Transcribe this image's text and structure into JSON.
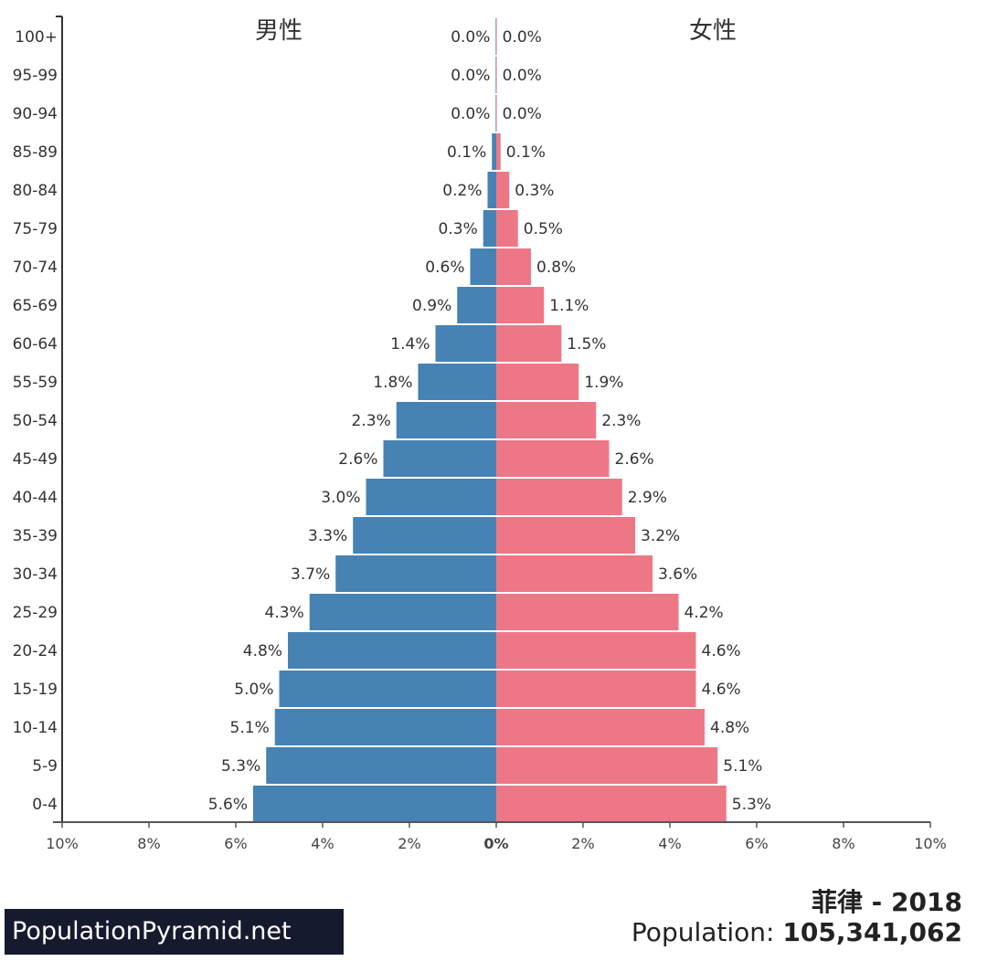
{
  "chart_data": {
    "type": "bar",
    "orientation": "horizontal-population-pyramid",
    "categories": [
      "0-4",
      "5-9",
      "10-14",
      "15-19",
      "20-24",
      "25-29",
      "30-34",
      "35-39",
      "40-44",
      "45-49",
      "50-54",
      "55-59",
      "60-64",
      "65-69",
      "70-74",
      "75-79",
      "80-84",
      "85-89",
      "90-94",
      "95-99",
      "100+"
    ],
    "series": [
      {
        "name": "男性",
        "color": "#4682b4",
        "values": [
          5.6,
          5.3,
          5.1,
          5.0,
          4.8,
          4.3,
          3.7,
          3.3,
          3.0,
          2.6,
          2.3,
          1.8,
          1.4,
          0.9,
          0.6,
          0.3,
          0.2,
          0.1,
          0.0,
          0.0,
          0.0
        ]
      },
      {
        "name": "女性",
        "color": "#ee7785",
        "values": [
          5.3,
          5.1,
          4.8,
          4.6,
          4.6,
          4.2,
          3.6,
          3.2,
          2.9,
          2.6,
          2.3,
          1.9,
          1.5,
          1.1,
          0.8,
          0.5,
          0.3,
          0.1,
          0.0,
          0.0,
          0.0
        ]
      }
    ],
    "xlim": [
      -10,
      10
    ],
    "xticks": [
      "10%",
      "8%",
      "6%",
      "4%",
      "2%",
      "0%",
      "2%",
      "4%",
      "6%",
      "8%",
      "10%"
    ],
    "value_suffix": "%",
    "grid": false
  },
  "footer": {
    "logo": "PopulationPyramid.net",
    "country_year": "菲律 - 2018",
    "population_label": "Population:",
    "population_value": "105,341,062"
  }
}
